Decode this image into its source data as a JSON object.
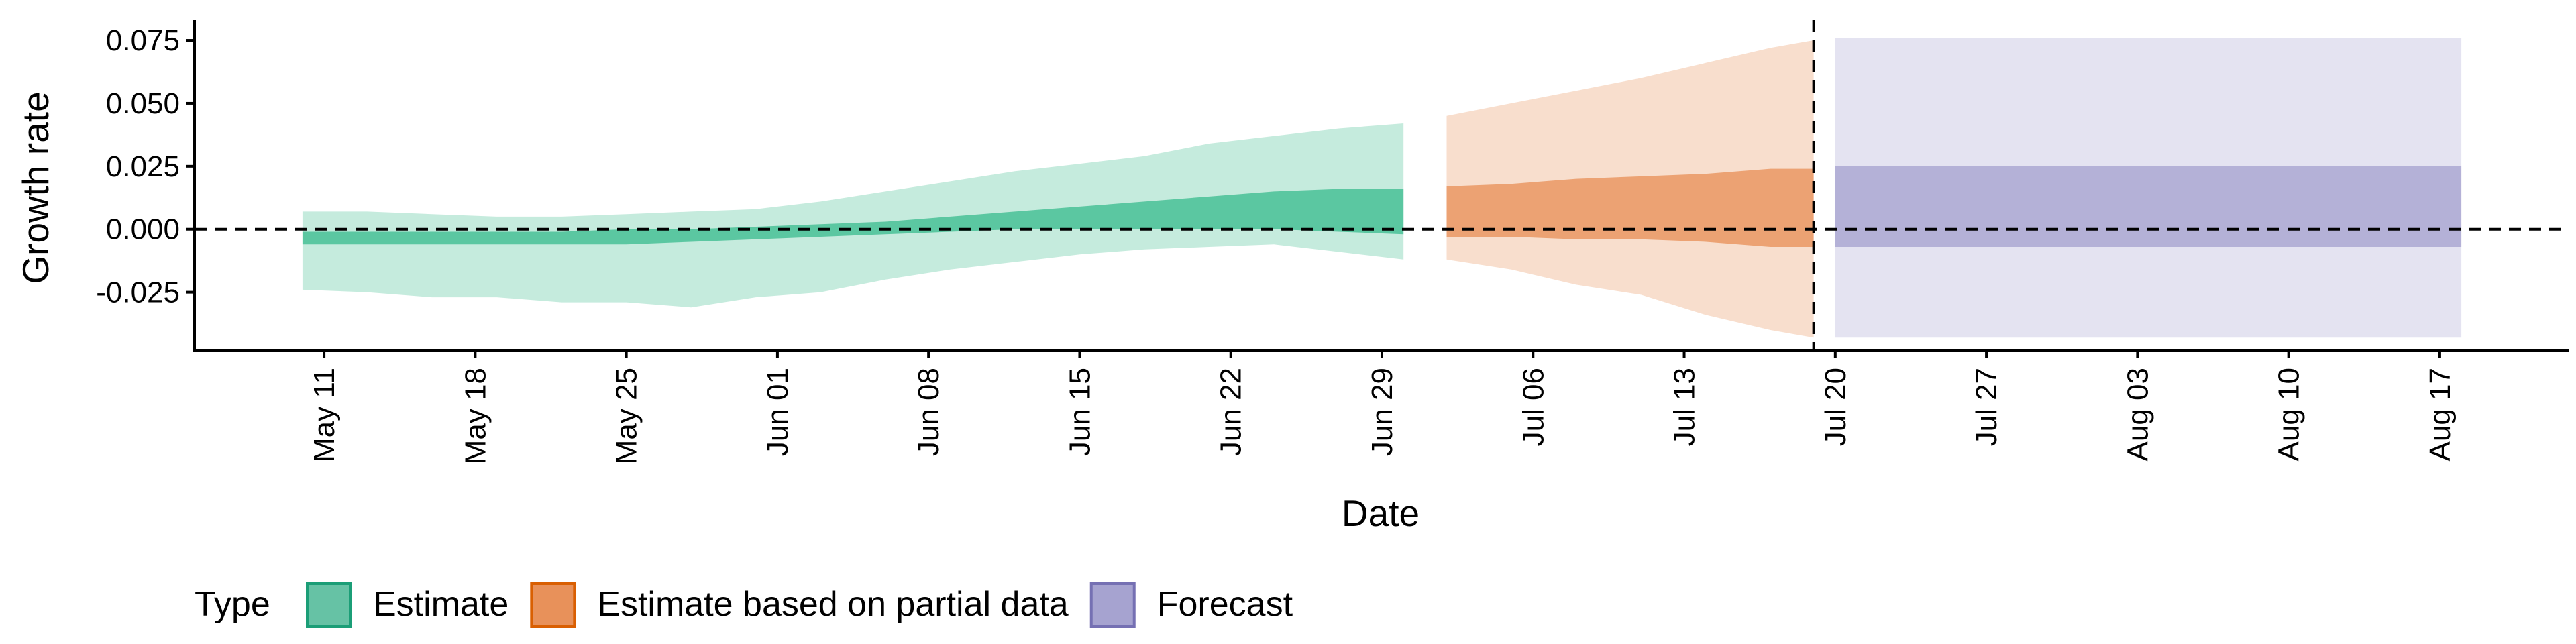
{
  "chart_data": {
    "type": "area",
    "xlabel": "Date",
    "ylabel": "Growth rate",
    "xlim": [
      "2021-05-05",
      "2021-08-23"
    ],
    "ylim": [
      -0.048,
      0.083
    ],
    "x_ticks": [
      "2021-05-11",
      "2021-05-18",
      "2021-05-25",
      "2021-06-01",
      "2021-06-08",
      "2021-06-15",
      "2021-06-22",
      "2021-06-29",
      "2021-07-06",
      "2021-07-13",
      "2021-07-20",
      "2021-07-27",
      "2021-08-03",
      "2021-08-10",
      "2021-08-17"
    ],
    "x_tick_labels": [
      "May 11",
      "May 18",
      "May 25",
      "Jun 01",
      "Jun 08",
      "Jun 15",
      "Jun 22",
      "Jun 29",
      "Jul 06",
      "Jul 13",
      "Jul 20",
      "Jul 27",
      "Aug 03",
      "Aug 10",
      "Aug 17"
    ],
    "y_ticks": [
      -0.025,
      0,
      0.025,
      0.05,
      0.075
    ],
    "y_tick_labels": [
      "-0.025",
      "0.000",
      "0.025",
      "0.050",
      "0.075"
    ],
    "reference_lines": {
      "horizontal_y": 0,
      "vertical_x": "2021-07-19"
    },
    "legend": {
      "title": "Type",
      "position": "bottom",
      "entries": [
        {
          "label": "Estimate",
          "color": "#66c2a5"
        },
        {
          "label": "Estimate based on partial data",
          "color": "#e8915a"
        },
        {
          "label": "Forecast",
          "color": "#a6a3d0"
        }
      ]
    },
    "series": [
      {
        "color": "#3ebc90",
        "x": [
          "2021-05-10",
          "2021-05-13",
          "2021-05-16",
          "2021-05-19",
          "2021-05-22",
          "2021-05-25",
          "2021-05-28",
          "2021-05-31",
          "2021-06-03",
          "2021-06-06",
          "2021-06-09",
          "2021-06-12",
          "2021-06-15",
          "2021-06-18",
          "2021-06-21",
          "2021-06-24",
          "2021-06-27",
          "2021-06-30"
        ],
        "outer_lower": [
          -0.024,
          -0.025,
          -0.027,
          -0.027,
          -0.029,
          -0.029,
          -0.031,
          -0.027,
          -0.025,
          -0.02,
          -0.016,
          -0.013,
          -0.01,
          -0.008,
          -0.007,
          -0.006,
          -0.009,
          -0.012
        ],
        "outer_upper": [
          0.007,
          0.007,
          0.006,
          0.005,
          0.005,
          0.006,
          0.007,
          0.008,
          0.011,
          0.015,
          0.019,
          0.023,
          0.026,
          0.029,
          0.034,
          0.037,
          0.04,
          0.042
        ],
        "inner_lower": [
          -0.006,
          -0.006,
          -0.006,
          -0.006,
          -0.006,
          -0.006,
          -0.005,
          -0.004,
          -0.003,
          -0.002,
          -0.001,
          0.0,
          0.0,
          0.0,
          0.0,
          0.0,
          -0.001,
          -0.002
        ],
        "inner_upper": [
          -0.001,
          -0.001,
          -0.001,
          -0.001,
          -0.001,
          0.0,
          0.0,
          0.001,
          0.002,
          0.003,
          0.005,
          0.007,
          0.009,
          0.011,
          0.013,
          0.015,
          0.016,
          0.016
        ]
      },
      {
        "color": "#e8915a",
        "x": [
          "2021-07-02",
          "2021-07-05",
          "2021-07-08",
          "2021-07-11",
          "2021-07-14",
          "2021-07-17",
          "2021-07-19"
        ],
        "outer_lower": [
          -0.012,
          -0.016,
          -0.022,
          -0.026,
          -0.034,
          -0.04,
          -0.043
        ],
        "outer_upper": [
          0.045,
          0.05,
          0.055,
          0.06,
          0.066,
          0.072,
          0.075
        ],
        "inner_lower": [
          -0.003,
          -0.003,
          -0.004,
          -0.004,
          -0.005,
          -0.007,
          -0.007
        ],
        "inner_upper": [
          0.017,
          0.018,
          0.02,
          0.021,
          0.022,
          0.024,
          0.024
        ]
      },
      {
        "color": "#a6a3d0",
        "x": [
          "2021-07-20",
          "2021-08-18"
        ],
        "outer_lower": [
          -0.043,
          -0.043
        ],
        "outer_upper": [
          0.076,
          0.076
        ],
        "inner_lower": [
          -0.007,
          -0.007
        ],
        "inner_upper": [
          0.025,
          0.025
        ]
      }
    ]
  }
}
